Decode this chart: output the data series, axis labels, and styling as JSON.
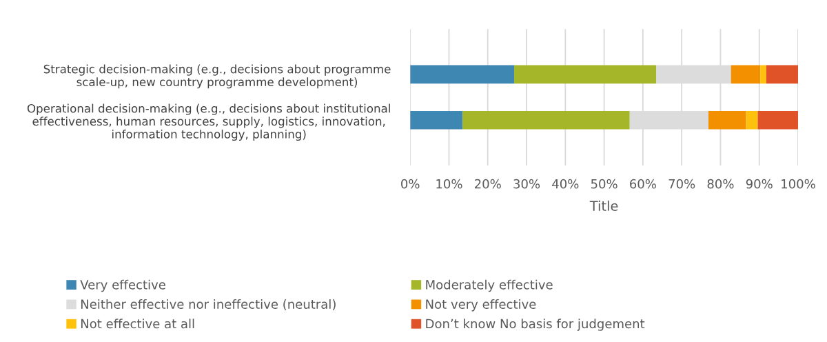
{
  "chart_data": {
    "type": "bar",
    "orientation": "horizontal",
    "stacked": true,
    "xlabel": "Title",
    "categories": [
      "Strategic decision-making (e.g., decisions about programme\nscale-up, new country programme development)",
      "Operational decision-making (e.g., decisions about institutional\neffectiveness, human resources, supply, logistics, innovation,\ninformation technology, planning)"
    ],
    "series": [
      {
        "name": "Very effective",
        "color": "#3f87b3",
        "values": [
          26.8,
          13.5
        ]
      },
      {
        "name": "Moderately effective",
        "color": "#a5b628",
        "values": [
          36.6,
          43.1
        ]
      },
      {
        "name": "Neither effective nor ineffective (neutral)",
        "color": "#dcdcdc",
        "values": [
          19.3,
          20.3
        ]
      },
      {
        "name": "Not very effective",
        "color": "#f39000",
        "values": [
          7.6,
          9.7
        ]
      },
      {
        "name": "Not effective at all",
        "color": "#fec20e",
        "values": [
          1.5,
          3.0
        ]
      },
      {
        "name": "Don’t know No basis for judgement",
        "color": "#e05328",
        "values": [
          8.2,
          10.4
        ]
      }
    ],
    "xlim": [
      0,
      100
    ],
    "xticks": [
      {
        "value": 0,
        "label": "0%"
      },
      {
        "value": 10,
        "label": "10%"
      },
      {
        "value": 20,
        "label": "20%"
      },
      {
        "value": 30,
        "label": "30%"
      },
      {
        "value": 40,
        "label": "40%"
      },
      {
        "value": 50,
        "label": "50%"
      },
      {
        "value": 60,
        "label": "60%"
      },
      {
        "value": 70,
        "label": "70%"
      },
      {
        "value": 80,
        "label": "80%"
      },
      {
        "value": 90,
        "label": "90%"
      },
      {
        "value": 100,
        "label": "100%"
      }
    ],
    "grid": "x",
    "legend": "bottom"
  }
}
